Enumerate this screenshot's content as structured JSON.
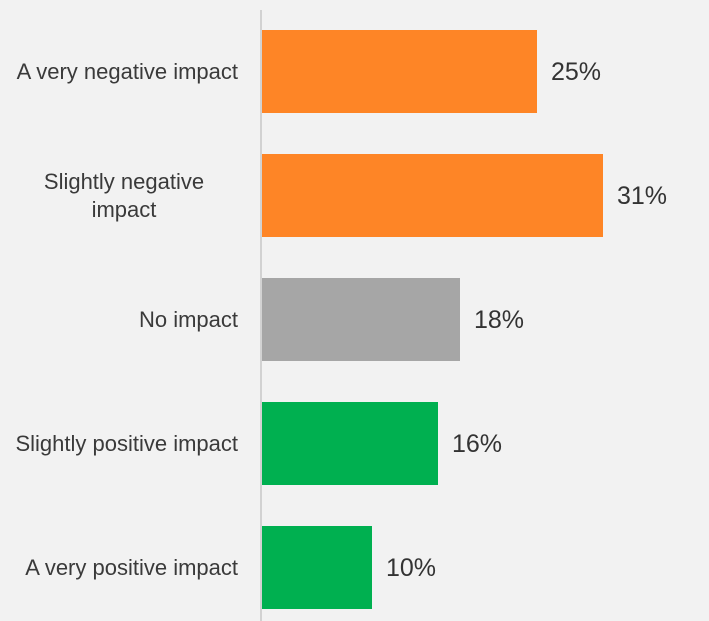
{
  "chart_data": {
    "type": "hbar",
    "categories": [
      "A very negative impact",
      "Slightly negative impact",
      "No impact",
      "Slightly positive impact",
      "A very positive impact"
    ],
    "values": [
      25,
      31,
      18,
      16,
      10
    ],
    "value_labels": [
      "25%",
      "31%",
      "18%",
      "16%",
      "10%"
    ],
    "colors": [
      "#fe8526",
      "#fe8526",
      "#a6a6a6",
      "#00b050",
      "#00b050"
    ]
  }
}
